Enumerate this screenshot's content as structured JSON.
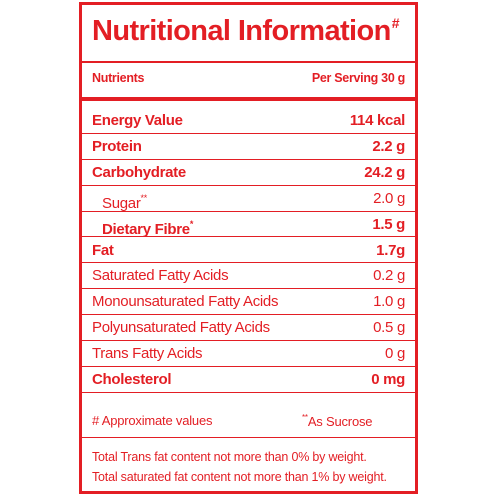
{
  "title": {
    "text": "Nutritional Information",
    "mark": "#"
  },
  "header": {
    "nutrients_label": "Nutrients",
    "serving_label": "Per Serving 30 g"
  },
  "rows": [
    {
      "label": "Energy Value",
      "value": "114 kcal",
      "bold": true
    },
    {
      "label": "Protein",
      "value": "2.2 g",
      "bold": true
    },
    {
      "label": "Carbohydrate",
      "value": "24.2 g",
      "bold": true
    },
    {
      "label": "Sugar",
      "mark": "**",
      "value": "2.0 g",
      "bold": false,
      "indent": true
    },
    {
      "label": "Dietary Fibre",
      "mark": "*",
      "value": "1.5 g",
      "bold": true,
      "indent": true
    },
    {
      "label": "Fat",
      "value": "1.7g",
      "bold": true
    },
    {
      "label": "Saturated Fatty Acids",
      "value": "0.2 g",
      "bold": false
    },
    {
      "label": "Monounsaturated Fatty Acids",
      "value": "1.0 g",
      "bold": false
    },
    {
      "label": "Polyunsaturated Fatty Acids",
      "value": "0.5 g",
      "bold": false
    },
    {
      "label": "Trans Fatty Acids",
      "value": "0 g",
      "bold": false
    },
    {
      "label": "Cholesterol",
      "value": "0 mg",
      "bold": true
    }
  ],
  "footnotes": {
    "approx": "# Approximate values",
    "sucrose_mark": "**",
    "sucrose": "As Sucrose"
  },
  "notes": [
    "Total Trans fat content not more than 0% by weight.",
    "Total saturated fat content not more than 1% by weight."
  ],
  "colors": {
    "accent": "#e31e24",
    "background": "#ffffff"
  }
}
